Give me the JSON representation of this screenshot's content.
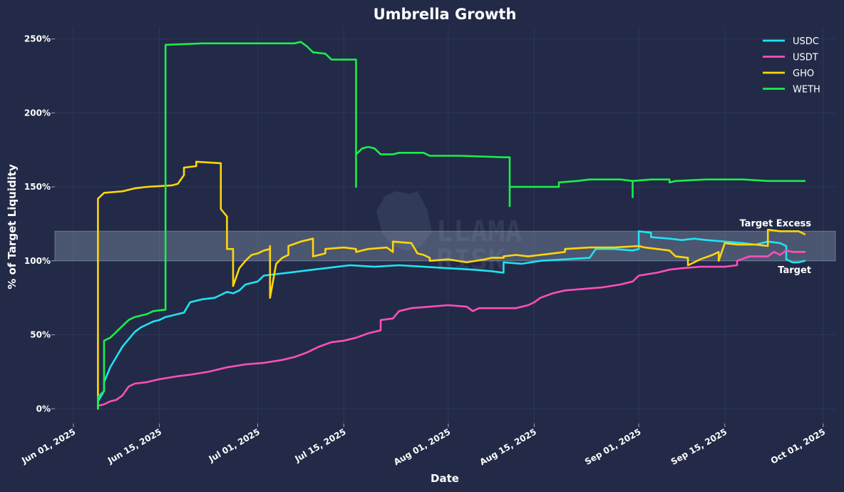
{
  "chart_data": {
    "type": "line",
    "title": "Umbrella Growth",
    "xlabel": "Date",
    "ylabel": "% of Target Liquidity",
    "x_ticks": [
      "2025-06-01",
      "2025-06-15",
      "2025-07-01",
      "2025-07-15",
      "2025-08-01",
      "2025-08-15",
      "2025-09-01",
      "2025-09-15",
      "2025-10-01"
    ],
    "x_tick_labels": [
      "Jun 01, 2025",
      "Jun 15, 2025",
      "Jul 01, 2025",
      "Jul 15, 2025",
      "Aug 01, 2025",
      "Aug 15, 2025",
      "Sep 01, 2025",
      "Sep 15, 2025",
      "Oct 01, 2025"
    ],
    "y_ticks": [
      0,
      50,
      100,
      150,
      200,
      250
    ],
    "y_tick_labels": [
      "0%",
      "50%",
      "100%",
      "150%",
      "200%",
      "250%"
    ],
    "xlim": [
      "2025-05-29",
      "2025-10-03"
    ],
    "ylim": [
      -10,
      258
    ],
    "grid": true,
    "legend_position": "top-right",
    "bands": [
      {
        "y0": 100,
        "y1": 120,
        "upper_label": "Target Excess",
        "lower_label": "Target",
        "color": "#8e9db5"
      }
    ],
    "series": [
      {
        "name": "USDC",
        "color": "#1fe3f2",
        "points": [
          [
            "2025-06-05",
            0
          ],
          [
            "2025-06-05",
            5
          ],
          [
            "2025-06-06",
            12
          ],
          [
            "2025-06-06",
            18
          ],
          [
            "2025-06-07",
            28
          ],
          [
            "2025-06-08",
            35
          ],
          [
            "2025-06-09",
            42
          ],
          [
            "2025-06-10",
            47
          ],
          [
            "2025-06-11",
            52
          ],
          [
            "2025-06-12",
            55
          ],
          [
            "2025-06-13",
            57
          ],
          [
            "2025-06-14",
            59
          ],
          [
            "2025-06-15",
            60
          ],
          [
            "2025-06-16",
            62
          ],
          [
            "2025-06-17",
            63
          ],
          [
            "2025-06-18",
            64
          ],
          [
            "2025-06-19",
            65
          ],
          [
            "2025-06-20",
            72
          ],
          [
            "2025-06-22",
            74
          ],
          [
            "2025-06-24",
            75
          ],
          [
            "2025-06-25",
            77
          ],
          [
            "2025-06-26",
            79
          ],
          [
            "2025-06-27",
            78
          ],
          [
            "2025-06-28",
            80
          ],
          [
            "2025-06-29",
            84
          ],
          [
            "2025-07-01",
            86
          ],
          [
            "2025-07-02",
            90
          ],
          [
            "2025-07-04",
            91
          ],
          [
            "2025-07-06",
            92
          ],
          [
            "2025-07-08",
            93
          ],
          [
            "2025-07-10",
            94
          ],
          [
            "2025-07-12",
            95
          ],
          [
            "2025-07-14",
            96
          ],
          [
            "2025-07-16",
            97
          ],
          [
            "2025-07-20",
            96
          ],
          [
            "2025-07-24",
            97
          ],
          [
            "2025-07-28",
            96
          ],
          [
            "2025-08-01",
            95
          ],
          [
            "2025-08-05",
            94
          ],
          [
            "2025-08-08",
            93
          ],
          [
            "2025-08-10",
            92
          ],
          [
            "2025-08-10",
            99
          ],
          [
            "2025-08-13",
            98
          ],
          [
            "2025-08-16",
            100
          ],
          [
            "2025-08-20",
            101
          ],
          [
            "2025-08-24",
            102
          ],
          [
            "2025-08-25",
            108
          ],
          [
            "2025-08-28",
            108
          ],
          [
            "2025-08-31",
            107
          ],
          [
            "2025-09-01",
            108
          ],
          [
            "2025-09-01",
            120
          ],
          [
            "2025-09-03",
            119
          ],
          [
            "2025-09-03",
            116
          ],
          [
            "2025-09-06",
            115
          ],
          [
            "2025-09-08",
            114
          ],
          [
            "2025-09-10",
            115
          ],
          [
            "2025-09-12",
            114
          ],
          [
            "2025-09-15",
            113
          ],
          [
            "2025-09-18",
            112
          ],
          [
            "2025-09-20",
            111
          ],
          [
            "2025-09-22",
            113
          ],
          [
            "2025-09-24",
            112
          ],
          [
            "2025-09-25",
            110
          ],
          [
            "2025-09-25",
            101
          ],
          [
            "2025-09-26",
            99
          ],
          [
            "2025-09-27",
            99
          ],
          [
            "2025-09-28",
            100
          ]
        ]
      },
      {
        "name": "USDT",
        "color": "#ff4fb8",
        "points": [
          [
            "2025-06-05",
            2
          ],
          [
            "2025-06-06",
            3
          ],
          [
            "2025-06-07",
            5
          ],
          [
            "2025-06-08",
            6
          ],
          [
            "2025-06-09",
            9
          ],
          [
            "2025-06-10",
            15
          ],
          [
            "2025-06-11",
            17
          ],
          [
            "2025-06-13",
            18
          ],
          [
            "2025-06-15",
            20
          ],
          [
            "2025-06-18",
            22
          ],
          [
            "2025-06-20",
            23
          ],
          [
            "2025-06-23",
            25
          ],
          [
            "2025-06-26",
            28
          ],
          [
            "2025-06-29",
            30
          ],
          [
            "2025-07-02",
            31
          ],
          [
            "2025-07-05",
            33
          ],
          [
            "2025-07-07",
            35
          ],
          [
            "2025-07-09",
            38
          ],
          [
            "2025-07-11",
            42
          ],
          [
            "2025-07-13",
            45
          ],
          [
            "2025-07-15",
            46
          ],
          [
            "2025-07-17",
            48
          ],
          [
            "2025-07-19",
            51
          ],
          [
            "2025-07-21",
            53
          ],
          [
            "2025-07-21",
            60
          ],
          [
            "2025-07-23",
            61
          ],
          [
            "2025-07-24",
            66
          ],
          [
            "2025-07-26",
            68
          ],
          [
            "2025-07-29",
            69
          ],
          [
            "2025-08-01",
            70
          ],
          [
            "2025-08-04",
            69
          ],
          [
            "2025-08-05",
            66
          ],
          [
            "2025-08-06",
            68
          ],
          [
            "2025-08-09",
            68
          ],
          [
            "2025-08-12",
            68
          ],
          [
            "2025-08-14",
            70
          ],
          [
            "2025-08-15",
            72
          ],
          [
            "2025-08-16",
            75
          ],
          [
            "2025-08-18",
            78
          ],
          [
            "2025-08-20",
            80
          ],
          [
            "2025-08-23",
            81
          ],
          [
            "2025-08-26",
            82
          ],
          [
            "2025-08-29",
            84
          ],
          [
            "2025-08-31",
            86
          ],
          [
            "2025-09-01",
            90
          ],
          [
            "2025-09-04",
            92
          ],
          [
            "2025-09-06",
            94
          ],
          [
            "2025-09-08",
            95
          ],
          [
            "2025-09-11",
            96
          ],
          [
            "2025-09-15",
            96
          ],
          [
            "2025-09-17",
            97
          ],
          [
            "2025-09-17",
            100
          ],
          [
            "2025-09-19",
            103
          ],
          [
            "2025-09-22",
            103
          ],
          [
            "2025-09-23",
            106
          ],
          [
            "2025-09-24",
            104
          ],
          [
            "2025-09-25",
            107
          ],
          [
            "2025-09-26",
            106
          ],
          [
            "2025-09-28",
            106
          ]
        ]
      },
      {
        "name": "GHO",
        "color": "#ffd60a",
        "points": [
          [
            "2025-06-05",
            0
          ],
          [
            "2025-06-05",
            127
          ],
          [
            "2025-06-05",
            142
          ],
          [
            "2025-06-06",
            146
          ],
          [
            "2025-06-09",
            147
          ],
          [
            "2025-06-11",
            149
          ],
          [
            "2025-06-13",
            150
          ],
          [
            "2025-06-17",
            151
          ],
          [
            "2025-06-18",
            152
          ],
          [
            "2025-06-19",
            158
          ],
          [
            "2025-06-19",
            163
          ],
          [
            "2025-06-21",
            164
          ],
          [
            "2025-06-21",
            167
          ],
          [
            "2025-06-25",
            166
          ],
          [
            "2025-06-25",
            135
          ],
          [
            "2025-06-26",
            130
          ],
          [
            "2025-06-26",
            108
          ],
          [
            "2025-06-27",
            108
          ],
          [
            "2025-06-27",
            83
          ],
          [
            "2025-06-28",
            95
          ],
          [
            "2025-06-29",
            100
          ],
          [
            "2025-06-30",
            104
          ],
          [
            "2025-07-01",
            105
          ],
          [
            "2025-07-02",
            107
          ],
          [
            "2025-07-03",
            108
          ],
          [
            "2025-07-03",
            110
          ],
          [
            "2025-07-03",
            75
          ],
          [
            "2025-07-04",
            98
          ],
          [
            "2025-07-05",
            102
          ],
          [
            "2025-07-06",
            104
          ],
          [
            "2025-07-06",
            110
          ],
          [
            "2025-07-08",
            113
          ],
          [
            "2025-07-10",
            115
          ],
          [
            "2025-07-10",
            103
          ],
          [
            "2025-07-12",
            105
          ],
          [
            "2025-07-12",
            108
          ],
          [
            "2025-07-15",
            109
          ],
          [
            "2025-07-17",
            108
          ],
          [
            "2025-07-17",
            106
          ],
          [
            "2025-07-19",
            108
          ],
          [
            "2025-07-22",
            109
          ],
          [
            "2025-07-23",
            106
          ],
          [
            "2025-07-23",
            113
          ],
          [
            "2025-07-26",
            112
          ],
          [
            "2025-07-27",
            105
          ],
          [
            "2025-07-28",
            104
          ],
          [
            "2025-07-29",
            102
          ],
          [
            "2025-07-29",
            100
          ],
          [
            "2025-08-01",
            101
          ],
          [
            "2025-08-04",
            99
          ],
          [
            "2025-08-07",
            101
          ],
          [
            "2025-08-08",
            102
          ],
          [
            "2025-08-10",
            102
          ],
          [
            "2025-08-10",
            103
          ],
          [
            "2025-08-12",
            104
          ],
          [
            "2025-08-14",
            103
          ],
          [
            "2025-08-16",
            104
          ],
          [
            "2025-08-18",
            105
          ],
          [
            "2025-08-20",
            106
          ],
          [
            "2025-08-20",
            108
          ],
          [
            "2025-08-24",
            109
          ],
          [
            "2025-08-28",
            109
          ],
          [
            "2025-09-01",
            110
          ],
          [
            "2025-09-02",
            109
          ],
          [
            "2025-09-04",
            108
          ],
          [
            "2025-09-06",
            107
          ],
          [
            "2025-09-07",
            103
          ],
          [
            "2025-09-09",
            102
          ],
          [
            "2025-09-09",
            97
          ],
          [
            "2025-09-10",
            99
          ],
          [
            "2025-09-11",
            101
          ],
          [
            "2025-09-13",
            104
          ],
          [
            "2025-09-14",
            106
          ],
          [
            "2025-09-14",
            100
          ],
          [
            "2025-09-15",
            112
          ],
          [
            "2025-09-17",
            111
          ],
          [
            "2025-09-20",
            111
          ],
          [
            "2025-09-22",
            110
          ],
          [
            "2025-09-22",
            121
          ],
          [
            "2025-09-24",
            120
          ],
          [
            "2025-09-27",
            120
          ],
          [
            "2025-09-28",
            118
          ]
        ]
      },
      {
        "name": "WETH",
        "color": "#19ef4b",
        "points": [
          [
            "2025-06-05",
            0
          ],
          [
            "2025-06-05",
            8
          ],
          [
            "2025-06-06",
            12
          ],
          [
            "2025-06-06",
            46
          ],
          [
            "2025-06-07",
            48
          ],
          [
            "2025-06-08",
            52
          ],
          [
            "2025-06-09",
            56
          ],
          [
            "2025-06-10",
            60
          ],
          [
            "2025-06-11",
            62
          ],
          [
            "2025-06-13",
            64
          ],
          [
            "2025-06-14",
            66
          ],
          [
            "2025-06-16",
            67
          ],
          [
            "2025-06-16",
            246
          ],
          [
            "2025-06-22",
            247
          ],
          [
            "2025-07-01",
            247
          ],
          [
            "2025-07-07",
            247
          ],
          [
            "2025-07-08",
            248
          ],
          [
            "2025-07-09",
            245
          ],
          [
            "2025-07-10",
            241
          ],
          [
            "2025-07-12",
            240
          ],
          [
            "2025-07-13",
            236
          ],
          [
            "2025-07-17",
            236
          ],
          [
            "2025-07-17",
            150
          ],
          [
            "2025-07-17",
            172
          ],
          [
            "2025-07-18",
            176
          ],
          [
            "2025-07-19",
            177
          ],
          [
            "2025-07-20",
            176
          ],
          [
            "2025-07-21",
            172
          ],
          [
            "2025-07-23",
            172
          ],
          [
            "2025-07-24",
            173
          ],
          [
            "2025-07-28",
            173
          ],
          [
            "2025-07-29",
            171
          ],
          [
            "2025-08-03",
            171
          ],
          [
            "2025-08-10",
            170
          ],
          [
            "2025-08-11",
            170
          ],
          [
            "2025-08-11",
            137
          ],
          [
            "2025-08-11",
            150
          ],
          [
            "2025-08-13",
            150
          ],
          [
            "2025-08-19",
            150
          ],
          [
            "2025-08-19",
            153
          ],
          [
            "2025-08-22",
            154
          ],
          [
            "2025-08-24",
            155
          ],
          [
            "2025-08-29",
            155
          ],
          [
            "2025-08-31",
            154
          ],
          [
            "2025-08-31",
            143
          ],
          [
            "2025-08-31",
            154
          ],
          [
            "2025-09-03",
            155
          ],
          [
            "2025-09-06",
            155
          ],
          [
            "2025-09-06",
            153
          ],
          [
            "2025-09-07",
            154
          ],
          [
            "2025-09-12",
            155
          ],
          [
            "2025-09-18",
            155
          ],
          [
            "2025-09-22",
            154
          ],
          [
            "2025-09-28",
            154
          ]
        ]
      }
    ]
  }
}
